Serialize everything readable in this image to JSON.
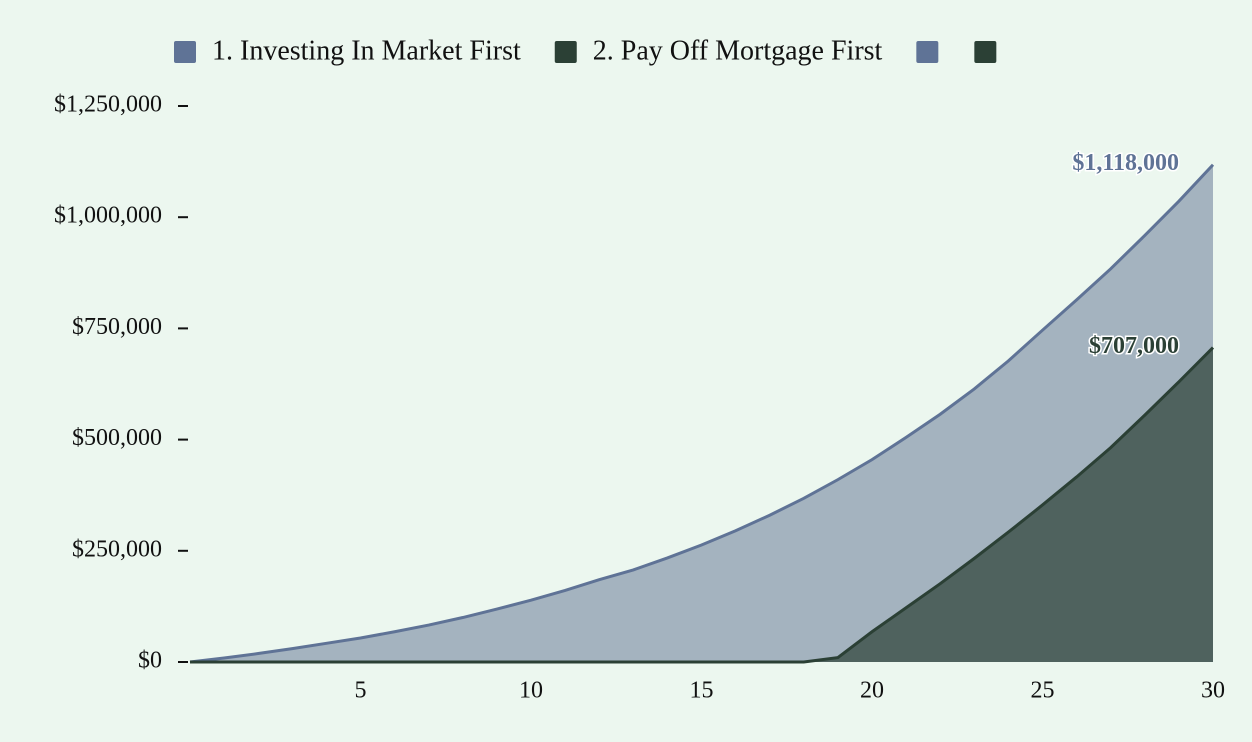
{
  "chart_data": {
    "type": "area",
    "x": [
      0,
      1,
      2,
      3,
      4,
      5,
      6,
      7,
      8,
      9,
      10,
      11,
      12,
      13,
      14,
      15,
      16,
      17,
      18,
      19,
      20,
      21,
      22,
      23,
      24,
      25,
      26,
      27,
      28,
      29,
      30
    ],
    "series": [
      {
        "name": "1. Investing In Market First",
        "color": "#5f7396",
        "fill": "#a4b3bf",
        "values": [
          0,
          9000,
          19000,
          30000,
          42000,
          54000,
          68000,
          83000,
          100000,
          119000,
          139000,
          161000,
          185000,
          207000,
          234000,
          263000,
          295000,
          330000,
          368000,
          410000,
          455000,
          505000,
          557000,
          614000,
          677000,
          746000,
          814000,
          884000,
          959000,
          1036000,
          1118000
        ],
        "value_labels": [
          null,
          null,
          null,
          null,
          null,
          null,
          null,
          null,
          null,
          null,
          null,
          null,
          null,
          null,
          null,
          null,
          null,
          null,
          null,
          null,
          null,
          null,
          null,
          null,
          null,
          null,
          null,
          null,
          null,
          null,
          "$1,118,000"
        ]
      },
      {
        "name": "2. Pay Off Mortgage First",
        "color": "#2b4035",
        "fill": "#4f625e",
        "values": [
          0,
          0,
          0,
          0,
          0,
          0,
          0,
          0,
          0,
          0,
          0,
          0,
          0,
          0,
          0,
          0,
          0,
          0,
          0,
          10000,
          68000,
          122000,
          176000,
          233000,
          292000,
          353000,
          416000,
          482000,
          555000,
          630000,
          707000
        ],
        "value_labels": [
          null,
          null,
          null,
          null,
          null,
          null,
          null,
          null,
          null,
          null,
          null,
          null,
          null,
          null,
          null,
          null,
          null,
          null,
          null,
          null,
          null,
          null,
          null,
          null,
          null,
          null,
          null,
          null,
          null,
          null,
          "$707,000"
        ]
      }
    ],
    "xlim": [
      0,
      30
    ],
    "xticks": [
      5,
      10,
      15,
      20,
      25,
      30
    ],
    "ylim": [
      0,
      1250000
    ],
    "yticks": [
      {
        "value": 0,
        "label": "$0"
      },
      {
        "value": 250000,
        "label": "$250,000"
      },
      {
        "value": 500000,
        "label": "$500,000"
      },
      {
        "value": 750000,
        "label": "$750,000"
      },
      {
        "value": 1000000,
        "label": "$1,000,000"
      },
      {
        "value": 1250000,
        "label": "$1,250,000"
      }
    ],
    "grid": false
  }
}
